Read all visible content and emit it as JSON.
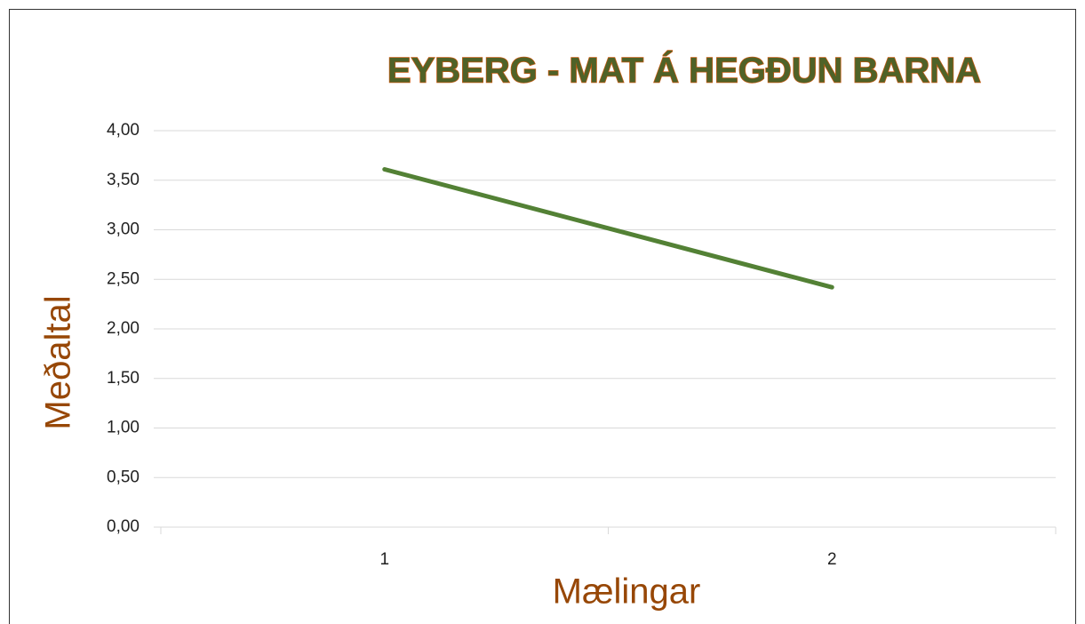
{
  "chart_data": {
    "type": "line",
    "title": "EYBERG - MAT Á HEGÐUN BARNA",
    "x_label": "Mælingar",
    "y_label": "Meðaltal",
    "categories": [
      "1",
      "2"
    ],
    "values": [
      3.61,
      2.42
    ],
    "color": "#538135",
    "ylim": [
      0,
      4
    ],
    "yticks": [
      {
        "value": 0,
        "label": "0,00"
      },
      {
        "value": 0.5,
        "label": "0,50"
      },
      {
        "value": 1,
        "label": "1,00"
      },
      {
        "value": 1.5,
        "label": "1,50"
      },
      {
        "value": 2,
        "label": "2,00"
      },
      {
        "value": 2.5,
        "label": "2,50"
      },
      {
        "value": 3,
        "label": "3,00"
      },
      {
        "value": 3.5,
        "label": "3,50"
      },
      {
        "value": 4,
        "label": "4,00"
      }
    ],
    "grid": true
  }
}
